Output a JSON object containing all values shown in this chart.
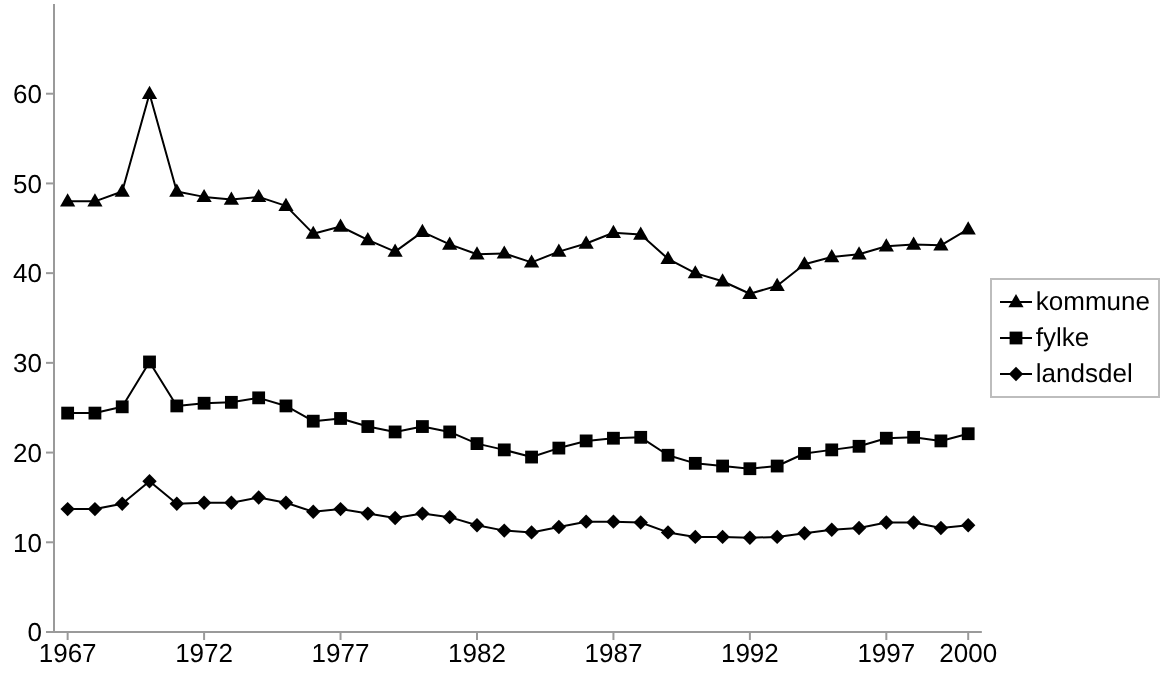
{
  "chart_data": {
    "type": "line",
    "x": [
      1967,
      1968,
      1969,
      1970,
      1971,
      1972,
      1973,
      1974,
      1975,
      1976,
      1977,
      1978,
      1979,
      1980,
      1981,
      1982,
      1983,
      1984,
      1985,
      1986,
      1987,
      1988,
      1989,
      1990,
      1991,
      1992,
      1993,
      1994,
      1995,
      1996,
      1997,
      1998,
      1999,
      2000
    ],
    "series": [
      {
        "name": "kommune",
        "color": "#000000",
        "marker": "triangle",
        "values": [
          48.0,
          48.0,
          49.1,
          60,
          49.1,
          48.5,
          48.2,
          48.5,
          47.5,
          44.4,
          45.2,
          43.7,
          42.4,
          44.6,
          43.2,
          42.1,
          42.2,
          41.2,
          42.4,
          43.3,
          44.5,
          44.3,
          41.6,
          40.0,
          39.1,
          37.7,
          38.6,
          41.0,
          41.8,
          42.1,
          43.0,
          43.2,
          43.1,
          44.9
        ]
      },
      {
        "name": "fylke",
        "color": "#000000",
        "marker": "square",
        "values": [
          24.4,
          24.4,
          25.1,
          30.1,
          25.2,
          25.5,
          25.6,
          26.1,
          25.2,
          23.5,
          23.8,
          22.9,
          22.3,
          22.9,
          22.3,
          21.0,
          20.3,
          19.5,
          20.5,
          21.3,
          21.6,
          21.7,
          19.7,
          18.8,
          18.5,
          18.2,
          18.5,
          19.9,
          20.3,
          20.7,
          21.6,
          21.7,
          21.3,
          22.1
        ]
      },
      {
        "name": "landsdel",
        "color": "#000000",
        "marker": "diamond",
        "values": [
          13.7,
          13.7,
          14.3,
          16.8,
          14.3,
          14.4,
          14.4,
          15.0,
          14.4,
          13.4,
          13.7,
          13.2,
          12.7,
          13.2,
          12.8,
          11.9,
          11.3,
          11.1,
          11.7,
          12.3,
          12.3,
          12.2,
          11.1,
          10.6,
          10.6,
          10.5,
          10.6,
          11.0,
          11.4,
          11.6,
          12.2,
          12.2,
          11.6,
          11.9
        ]
      }
    ],
    "xlim": [
      1966.5,
      2000.5
    ],
    "xticks": [
      1967,
      1972,
      1977,
      1982,
      1987,
      1992,
      1997,
      2000
    ],
    "ylim": [
      0,
      70
    ],
    "yticks": [
      0,
      10,
      20,
      30,
      40,
      50,
      60
    ],
    "grid": false,
    "legend": "right",
    "line_style": "solid"
  }
}
